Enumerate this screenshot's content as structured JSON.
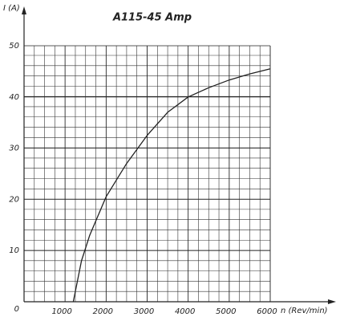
{
  "chart_data": {
    "type": "line",
    "title": "A115-45 Amp",
    "x_label": "n (Rev/min)",
    "y_label": "I (A)",
    "series": [
      {
        "name": "A115-45 Amp",
        "color": "#222222",
        "x": [
          1200,
          1400,
          1600,
          2000,
          2500,
          3000,
          3500,
          4000,
          4500,
          5000,
          5500,
          6000
        ],
        "values": [
          0,
          8,
          13,
          20.5,
          27,
          32.5,
          37,
          40,
          41.8,
          43.3,
          44.5,
          45.5
        ]
      }
    ],
    "xlim": [
      0,
      6000
    ],
    "xticks": [
      1000,
      2000,
      3000,
      4000,
      5000,
      6000
    ],
    "ylim": [
      0,
      50
    ],
    "yticks": [
      0,
      10,
      20,
      30,
      40,
      50
    ],
    "grid": true
  }
}
